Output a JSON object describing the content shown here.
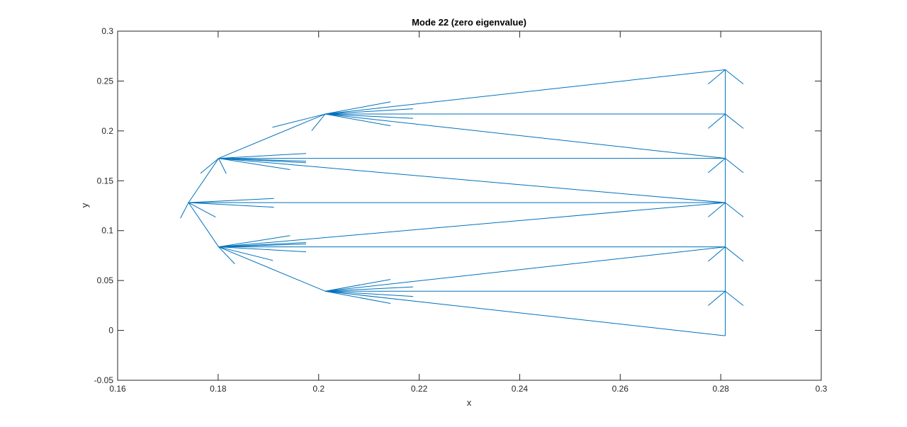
{
  "chart_data": {
    "type": "line",
    "title": "Mode 22 (zero eigenvalue)",
    "xlabel": "x",
    "ylabel": "y",
    "xlim": [
      0.16,
      0.3
    ],
    "ylim": [
      -0.05,
      0.3
    ],
    "xticks": [
      "0.16",
      "0.18",
      "0.2",
      "0.22",
      "0.24",
      "0.26",
      "0.28",
      "0.3"
    ],
    "yticks": [
      "-0.05",
      "0",
      "0.05",
      "0.1",
      "0.15",
      "0.2",
      "0.25",
      "0.3"
    ],
    "grid": false,
    "colors": {
      "series": "#0072BD",
      "axes": "#262626"
    },
    "segments": [
      [
        [
          0.1741,
          0.1281
        ],
        [
          0.1801,
          0.1725
        ]
      ],
      [
        [
          0.1801,
          0.1725
        ],
        [
          0.2013,
          0.2169
        ]
      ],
      [
        [
          0.1741,
          0.1281
        ],
        [
          0.1801,
          0.0837
        ]
      ],
      [
        [
          0.1801,
          0.0837
        ],
        [
          0.2013,
          0.0393
        ]
      ],
      [
        [
          0.2809,
          0.2614
        ],
        [
          0.2809,
          -0.0054
        ]
      ],
      [
        [
          0.2013,
          0.2169
        ],
        [
          0.2809,
          0.2614
        ]
      ],
      [
        [
          0.2013,
          0.2169
        ],
        [
          0.2809,
          0.2169
        ]
      ],
      [
        [
          0.2013,
          0.2169
        ],
        [
          0.2809,
          0.1725
        ]
      ],
      [
        [
          0.1801,
          0.1725
        ],
        [
          0.2809,
          0.1725
        ]
      ],
      [
        [
          0.1801,
          0.1725
        ],
        [
          0.2809,
          0.1281
        ]
      ],
      [
        [
          0.1741,
          0.1281
        ],
        [
          0.2809,
          0.1281
        ]
      ],
      [
        [
          0.1801,
          0.0837
        ],
        [
          0.2809,
          0.1281
        ]
      ],
      [
        [
          0.1801,
          0.0837
        ],
        [
          0.2809,
          0.0837
        ]
      ],
      [
        [
          0.2013,
          0.0393
        ],
        [
          0.2809,
          0.0837
        ]
      ],
      [
        [
          0.2013,
          0.0393
        ],
        [
          0.2809,
          0.0393
        ]
      ],
      [
        [
          0.2013,
          0.0393
        ],
        [
          0.2809,
          -0.0054
        ]
      ],
      [
        [
          0.1741,
          0.1281
        ],
        [
          0.1725,
          0.1125
        ]
      ],
      [
        [
          0.1741,
          0.1281
        ],
        [
          0.1795,
          0.1136
        ]
      ],
      [
        [
          0.1741,
          0.1281
        ],
        [
          0.1911,
          0.1323
        ]
      ],
      [
        [
          0.1741,
          0.1281
        ],
        [
          0.1911,
          0.1235
        ]
      ],
      [
        [
          0.1801,
          0.1725
        ],
        [
          0.1765,
          0.1575
        ]
      ],
      [
        [
          0.1801,
          0.1725
        ],
        [
          0.1816,
          0.1572
        ]
      ],
      [
        [
          0.1801,
          0.1725
        ],
        [
          0.1975,
          0.1774
        ]
      ],
      [
        [
          0.1801,
          0.1725
        ],
        [
          0.1975,
          0.1696
        ]
      ],
      [
        [
          0.1801,
          0.1725
        ],
        [
          0.1975,
          0.1681
        ]
      ],
      [
        [
          0.1801,
          0.1725
        ],
        [
          0.1943,
          0.1612
        ]
      ],
      [
        [
          0.1801,
          0.0837
        ],
        [
          0.1943,
          0.095
        ]
      ],
      [
        [
          0.1801,
          0.0837
        ],
        [
          0.1975,
          0.0881
        ]
      ],
      [
        [
          0.1801,
          0.0837
        ],
        [
          0.1975,
          0.0866
        ]
      ],
      [
        [
          0.1801,
          0.0837
        ],
        [
          0.1975,
          0.0788
        ]
      ],
      [
        [
          0.1801,
          0.0837
        ],
        [
          0.1909,
          0.0701
        ]
      ],
      [
        [
          0.1801,
          0.0837
        ],
        [
          0.1833,
          0.0667
        ]
      ],
      [
        [
          0.2013,
          0.2169
        ],
        [
          0.1908,
          0.2036
        ]
      ],
      [
        [
          0.2013,
          0.2169
        ],
        [
          0.1986,
          0.2001
        ]
      ],
      [
        [
          0.2013,
          0.2169
        ],
        [
          0.2143,
          0.2292
        ]
      ],
      [
        [
          0.2013,
          0.2169
        ],
        [
          0.2188,
          0.2222
        ]
      ],
      [
        [
          0.2013,
          0.2169
        ],
        [
          0.2188,
          0.2126
        ]
      ],
      [
        [
          0.2013,
          0.2169
        ],
        [
          0.2143,
          0.2051
        ]
      ],
      [
        [
          0.2013,
          0.0393
        ],
        [
          0.2143,
          0.0511
        ]
      ],
      [
        [
          0.2013,
          0.0393
        ],
        [
          0.2188,
          0.0436
        ]
      ],
      [
        [
          0.2013,
          0.0393
        ],
        [
          0.2188,
          0.034
        ]
      ],
      [
        [
          0.2013,
          0.0393
        ],
        [
          0.2143,
          0.027
        ]
      ],
      [
        [
          0.2809,
          0.2614
        ],
        [
          0.2775,
          0.247
        ]
      ],
      [
        [
          0.2809,
          0.2614
        ],
        [
          0.2845,
          0.247
        ]
      ],
      [
        [
          0.2809,
          0.2169
        ],
        [
          0.2775,
          0.2025
        ]
      ],
      [
        [
          0.2809,
          0.2169
        ],
        [
          0.2845,
          0.2025
        ]
      ],
      [
        [
          0.2809,
          0.1725
        ],
        [
          0.2775,
          0.1581
        ]
      ],
      [
        [
          0.2809,
          0.1725
        ],
        [
          0.2845,
          0.1581
        ]
      ],
      [
        [
          0.2809,
          0.1281
        ],
        [
          0.2775,
          0.1137
        ]
      ],
      [
        [
          0.2809,
          0.1281
        ],
        [
          0.2845,
          0.1137
        ]
      ],
      [
        [
          0.2809,
          0.0837
        ],
        [
          0.2775,
          0.0693
        ]
      ],
      [
        [
          0.2809,
          0.0837
        ],
        [
          0.2845,
          0.0693
        ]
      ],
      [
        [
          0.2809,
          0.0393
        ],
        [
          0.2775,
          0.0249
        ]
      ],
      [
        [
          0.2809,
          0.0393
        ],
        [
          0.2845,
          0.0249
        ]
      ]
    ]
  }
}
